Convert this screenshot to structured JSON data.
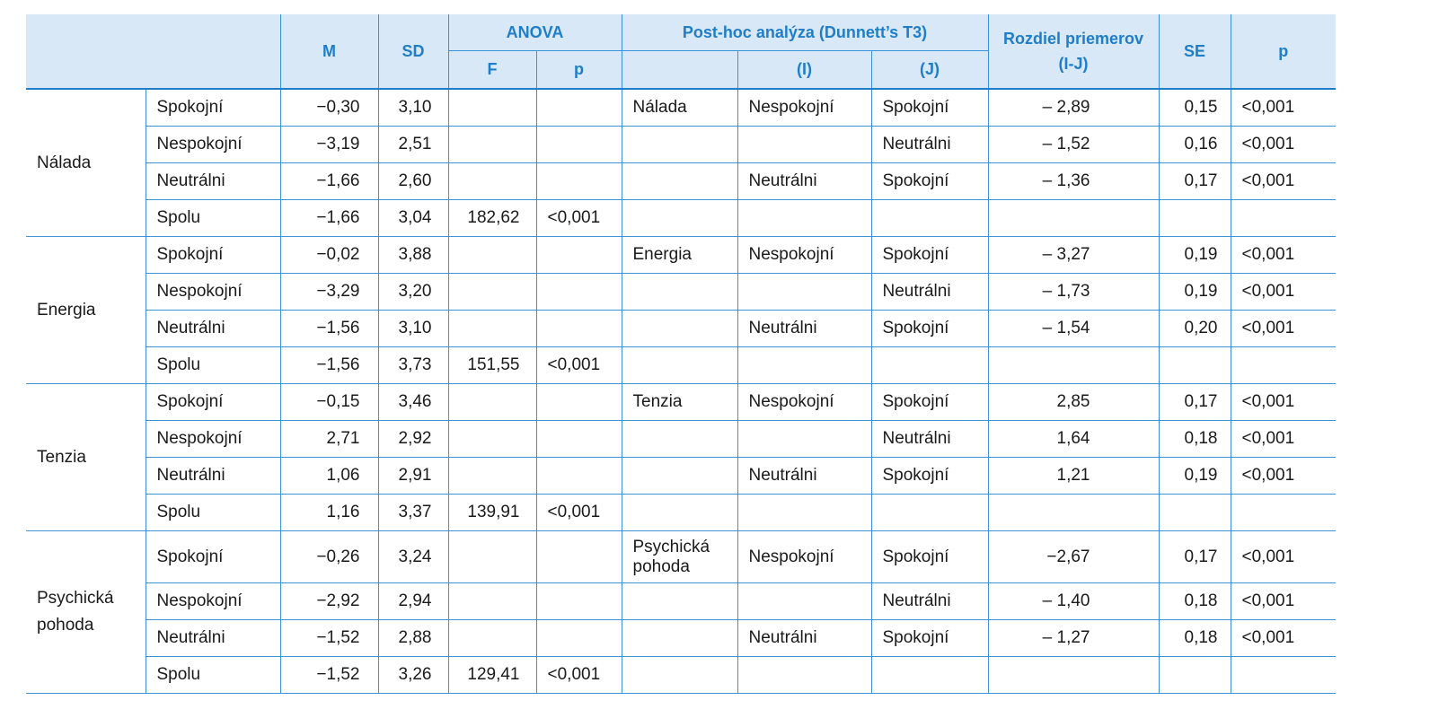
{
  "header": {
    "m": "M",
    "sd": "SD",
    "anova": "ANOVA",
    "f": "F",
    "p": "p",
    "posthoc": "Post-hoc analýza (Dunnett’s T3)",
    "i": "(I)",
    "j": "(J)",
    "diff": "Rozdiel priemerov (I-J)",
    "se": "SE",
    "p2": "p"
  },
  "groups": [
    {
      "name": "Nálada",
      "rows": [
        {
          "sub": "Spokojní",
          "m": "−0,30",
          "sd": "3,10",
          "f": "",
          "p": "",
          "ph": "Nálada",
          "i": "Nespokojní",
          "j": "Spokojní",
          "diff": "– 2,89",
          "se": "0,15",
          "p2": "<0,001"
        },
        {
          "sub": "Nespokojní",
          "m": "−3,19",
          "sd": "2,51",
          "f": "",
          "p": "",
          "ph": "",
          "i": "",
          "j": "Neutrálni",
          "diff": "– 1,52",
          "se": "0,16",
          "p2": "<0,001"
        },
        {
          "sub": "Neutrálni",
          "m": "−1,66",
          "sd": "2,60",
          "f": "",
          "p": "",
          "ph": "",
          "i": "Neutrálni",
          "j": "Spokojní",
          "diff": "– 1,36",
          "se": "0,17",
          "p2": "<0,001"
        },
        {
          "sub": "Spolu",
          "m": "−1,66",
          "sd": "3,04",
          "f": "182,62",
          "p": "<0,001",
          "ph": "",
          "i": "",
          "j": "",
          "diff": "",
          "se": "",
          "p2": ""
        }
      ]
    },
    {
      "name": "Energia",
      "rows": [
        {
          "sub": "Spokojní",
          "m": "−0,02",
          "sd": "3,88",
          "f": "",
          "p": "",
          "ph": "Energia",
          "i": "Nespokojní",
          "j": "Spokojní",
          "diff": "– 3,27",
          "se": "0,19",
          "p2": "<0,001"
        },
        {
          "sub": "Nespokojní",
          "m": "−3,29",
          "sd": "3,20",
          "f": "",
          "p": "",
          "ph": "",
          "i": "",
          "j": "Neutrálni",
          "diff": "– 1,73",
          "se": "0,19",
          "p2": "<0,001"
        },
        {
          "sub": "Neutrálni",
          "m": "−1,56",
          "sd": "3,10",
          "f": "",
          "p": "",
          "ph": "",
          "i": "Neutrálni",
          "j": "Spokojní",
          "diff": "– 1,54",
          "se": "0,20",
          "p2": "<0,001"
        },
        {
          "sub": "Spolu",
          "m": "−1,56",
          "sd": "3,73",
          "f": "151,55",
          "p": "<0,001",
          "ph": "",
          "i": "",
          "j": "",
          "diff": "",
          "se": "",
          "p2": ""
        }
      ]
    },
    {
      "name": "Tenzia",
      "rows": [
        {
          "sub": "Spokojní",
          "m": "−0,15",
          "sd": "3,46",
          "f": "",
          "p": "",
          "ph": "Tenzia",
          "i": "Nespokojní",
          "j": "Spokojní",
          "diff": "2,85",
          "se": "0,17",
          "p2": "<0,001"
        },
        {
          "sub": "Nespokojní",
          "m": "2,71",
          "sd": "2,92",
          "f": "",
          "p": "",
          "ph": "",
          "i": "",
          "j": "Neutrálni",
          "diff": "1,64",
          "se": "0,18",
          "p2": "<0,001"
        },
        {
          "sub": "Neutrálni",
          "m": "1,06",
          "sd": "2,91",
          "f": "",
          "p": "",
          "ph": "",
          "i": "Neutrálni",
          "j": "Spokojní",
          "diff": "1,21",
          "se": "0,19",
          "p2": "<0,001"
        },
        {
          "sub": "Spolu",
          "m": "1,16",
          "sd": "3,37",
          "f": "139,91",
          "p": "<0,001",
          "ph": "",
          "i": "",
          "j": "",
          "diff": "",
          "se": "",
          "p2": ""
        }
      ]
    },
    {
      "name": "Psychická pohoda",
      "rows": [
        {
          "sub": "Spokojní",
          "m": "−0,26",
          "sd": "3,24",
          "f": "",
          "p": "",
          "ph": "Psychická pohoda",
          "i": "Nespokojní",
          "j": "Spokojní",
          "diff": "−2,67",
          "se": "0,17",
          "p2": "<0,001"
        },
        {
          "sub": "Nespokojní",
          "m": "−2,92",
          "sd": "2,94",
          "f": "",
          "p": "",
          "ph": "",
          "i": "",
          "j": "Neutrálni",
          "diff": "– 1,40",
          "se": "0,18",
          "p2": "<0,001"
        },
        {
          "sub": "Neutrálni",
          "m": "−1,52",
          "sd": "2,88",
          "f": "",
          "p": "",
          "ph": "",
          "i": "Neutrálni",
          "j": "Spokojní",
          "diff": "– 1,27",
          "se": "0,18",
          "p2": "<0,001"
        },
        {
          "sub": "Spolu",
          "m": "−1,52",
          "sd": "3,26",
          "f": "129,41",
          "p": "<0,001",
          "ph": "",
          "i": "",
          "j": "",
          "diff": "",
          "se": "",
          "p2": ""
        }
      ]
    }
  ]
}
